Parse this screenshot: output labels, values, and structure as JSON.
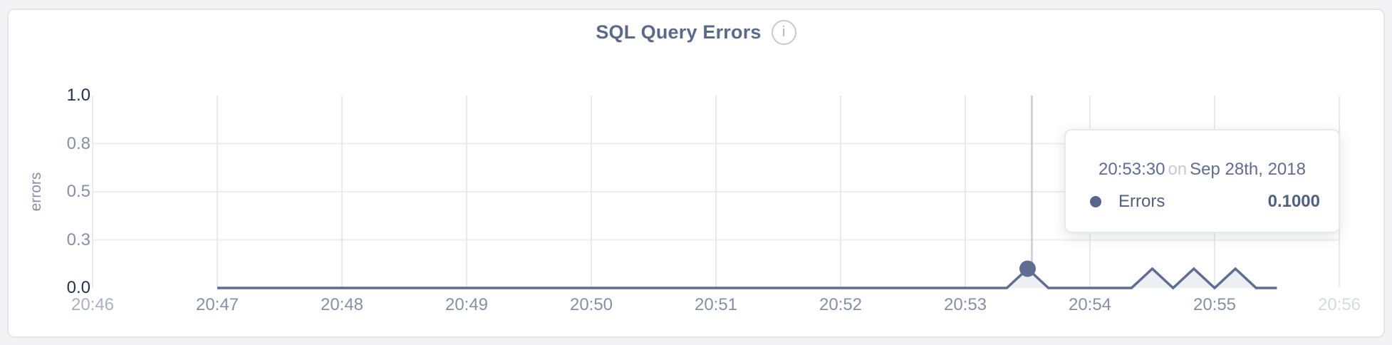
{
  "header": {
    "title": "SQL Query Errors",
    "info_icon_glyph": "i"
  },
  "colors": {
    "title": "#5b6a8a",
    "card_border": "#e4e5e8",
    "page_background": "#f3f3f5",
    "grid_vertical": "#e9eaec",
    "grid_horizontal": "#eeeef0",
    "hover_line": "#caccd1",
    "axis_muted": "#8590a5",
    "axis_dark": "#25304e",
    "axis_faded_start": "#a9b0bf",
    "axis_faded_end": "#d6d9e1",
    "series": "#5e6d92",
    "series_fill": "#edeff5",
    "tooltip_text": "#5f6e90",
    "tooltip_on": "#c6cad2",
    "tooltip_row_text": "#51607f",
    "tooltip_dot": "#56658c"
  },
  "chart_data": {
    "type": "area",
    "title": "SQL Query Errors",
    "xlabel": "",
    "ylabel": "errors",
    "ylim": [
      0,
      1
    ],
    "x_range": [
      "20:46:00",
      "20:56:00"
    ],
    "grid": true,
    "legend_position": "none",
    "x_ticks": [
      "20:46",
      "20:47",
      "20:48",
      "20:49",
      "20:50",
      "20:51",
      "20:52",
      "20:53",
      "20:54",
      "20:55",
      "20:56"
    ],
    "y_ticks": [
      {
        "label": "0.0",
        "value": 0
      },
      {
        "label": "0.3",
        "value": 0.25
      },
      {
        "label": "0.5",
        "value": 0.5
      },
      {
        "label": "0.8",
        "value": 0.75
      },
      {
        "label": "1.0",
        "value": 1
      }
    ],
    "series": [
      {
        "name": "Errors",
        "points": [
          [
            "20:47:00",
            0
          ],
          [
            "20:53:20",
            0
          ],
          [
            "20:53:30",
            0.1
          ],
          [
            "20:53:40",
            0
          ],
          [
            "20:54:20",
            0
          ],
          [
            "20:54:30",
            0.1
          ],
          [
            "20:54:40",
            0
          ],
          [
            "20:54:50",
            0.1
          ],
          [
            "20:55:00",
            0
          ],
          [
            "20:55:10",
            0.1
          ],
          [
            "20:55:20",
            0
          ],
          [
            "20:55:30",
            0
          ]
        ]
      }
    ],
    "marker": {
      "series": "Errors",
      "time": "20:53:30",
      "value": 0.1
    }
  },
  "tooltip": {
    "time": "20:53:30",
    "connector": "on",
    "date": "Sep 28th, 2018",
    "series_name": "Errors",
    "value": "0.1000"
  }
}
